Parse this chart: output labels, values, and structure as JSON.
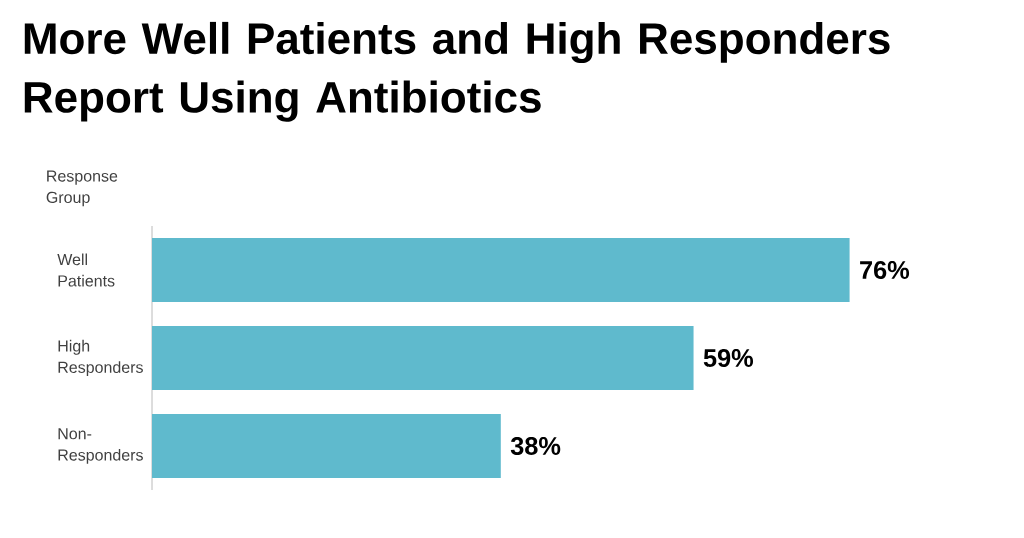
{
  "chart_data": {
    "type": "bar",
    "orientation": "horizontal",
    "title": "More Well Patients and High Responders Report Using Antibiotics",
    "ylabel": "Response Group",
    "categories": [
      "Well Patients",
      "High Responders",
      "Non-Responders"
    ],
    "values": [
      76,
      59,
      38
    ],
    "value_labels": [
      "76%",
      "59%",
      "38%"
    ],
    "color": "#5fbacd"
  }
}
